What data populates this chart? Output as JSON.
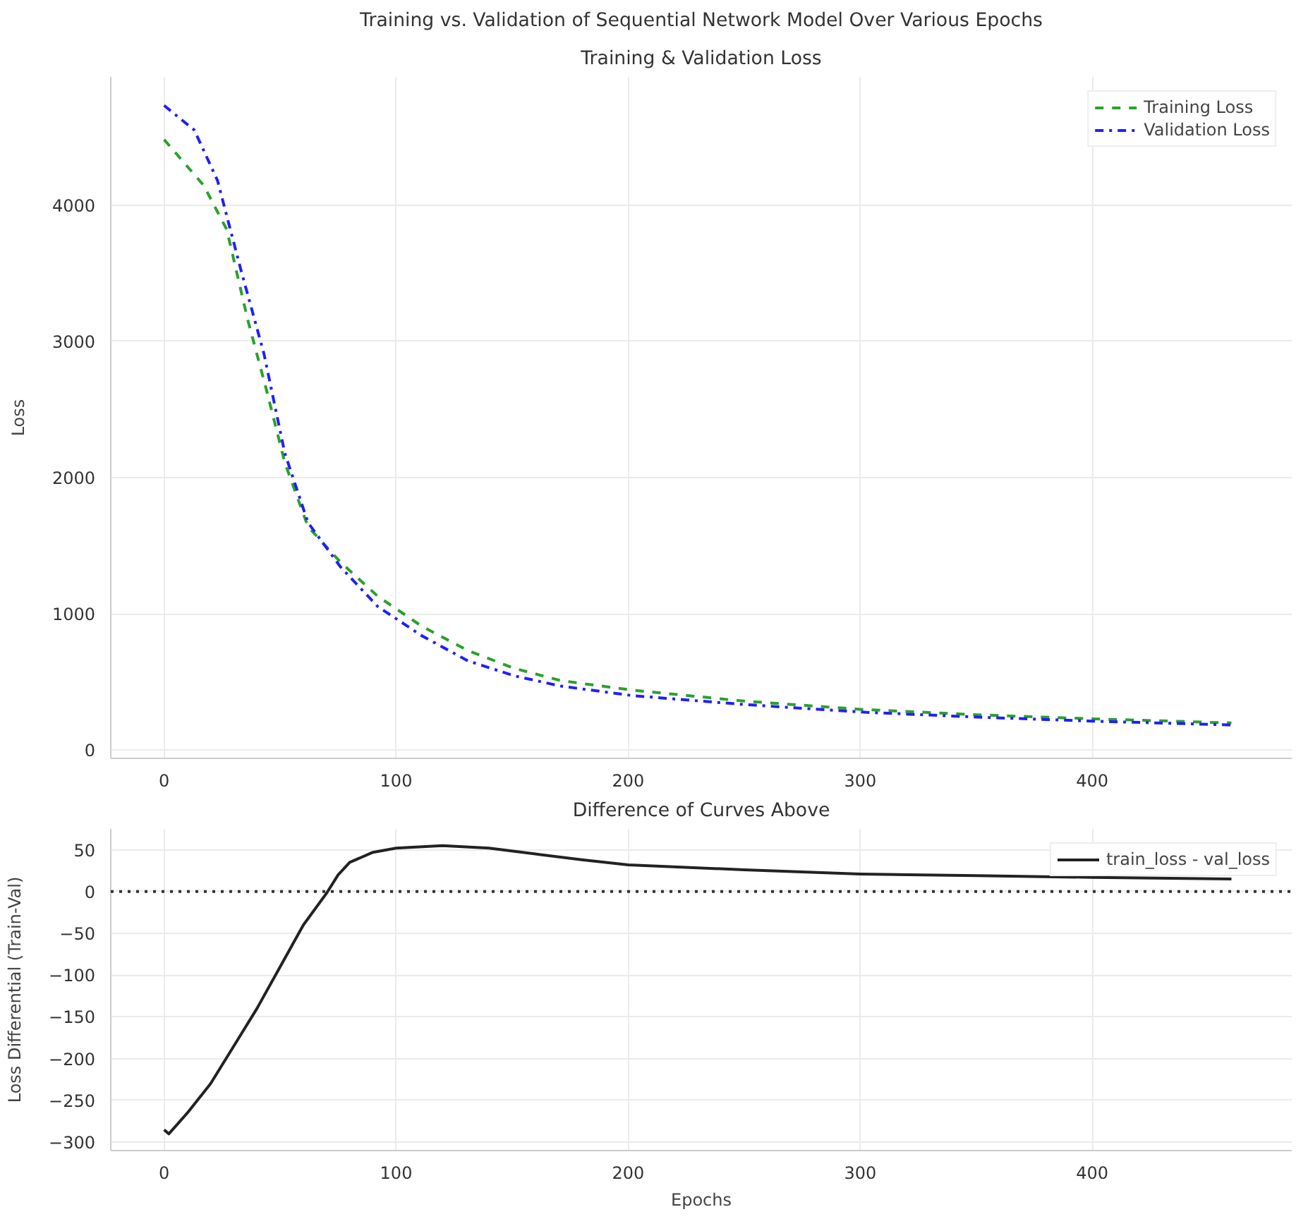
{
  "chart_data": [
    {
      "type": "line",
      "title": "Training vs. Validation of Sequential Network Model Over Various Epochs",
      "subtitle": "Training & Validation Loss",
      "ylabel": "Loss",
      "xlim": [
        -23,
        486
      ],
      "ylim": [
        -60,
        4940
      ],
      "xticks": [
        0,
        100,
        200,
        300,
        400
      ],
      "yticks": [
        0,
        1000,
        2000,
        3000,
        4000
      ],
      "grid": true,
      "legend": "top right",
      "series": [
        {
          "name": "Training Loss",
          "color": "#2ca02c",
          "line_style": "dashed",
          "x": [
            0,
            17,
            27,
            36,
            44,
            52,
            62,
            76,
            92,
            111,
            131,
            151,
            171,
            202,
            250,
            300,
            350,
            400,
            460
          ],
          "values": [
            4480,
            4145,
            3820,
            3160,
            2650,
            2110,
            1640,
            1380,
            1130,
            910,
            730,
            600,
            510,
            440,
            360,
            300,
            260,
            230,
            200
          ]
        },
        {
          "name": "Validation Loss",
          "color": "#1f1fff",
          "line_style": "dashdot",
          "x": [
            0,
            13,
            23,
            33,
            43,
            52,
            62,
            76,
            92,
            111,
            131,
            151,
            171,
            202,
            250,
            300,
            350,
            400,
            460
          ],
          "values": [
            4730,
            4550,
            4180,
            3530,
            2910,
            2180,
            1670,
            1345,
            1055,
            840,
            655,
            545,
            470,
            400,
            335,
            280,
            243,
            213,
            185
          ]
        }
      ]
    },
    {
      "type": "line",
      "title": "Difference of Curves Above",
      "xlabel": "Epochs",
      "ylabel": "Loss Differential (Train-Val)",
      "xlim": [
        -23,
        486
      ],
      "ylim": [
        -310,
        75
      ],
      "xticks": [
        0,
        100,
        200,
        300,
        400
      ],
      "yticks": [
        -300,
        -250,
        -200,
        -150,
        -100,
        -50,
        0,
        50
      ],
      "grid": true,
      "legend": "top right",
      "ref_lines": [
        {
          "axis": "y",
          "value": 0,
          "color": "#333333",
          "line_style": "dotted"
        }
      ],
      "series": [
        {
          "name": "train_loss - val_loss",
          "color": "#222222",
          "line_style": "solid",
          "x": [
            0,
            2,
            10,
            20,
            30,
            40,
            50,
            60,
            70,
            75,
            80,
            90,
            100,
            120,
            140,
            160,
            180,
            200,
            250,
            300,
            350,
            400,
            460
          ],
          "values": [
            -285,
            -290,
            -265,
            -230,
            -185,
            -140,
            -90,
            -40,
            -2,
            20,
            35,
            47,
            52,
            55,
            52,
            45,
            38,
            32,
            26,
            21,
            19,
            17,
            15
          ]
        }
      ]
    }
  ]
}
